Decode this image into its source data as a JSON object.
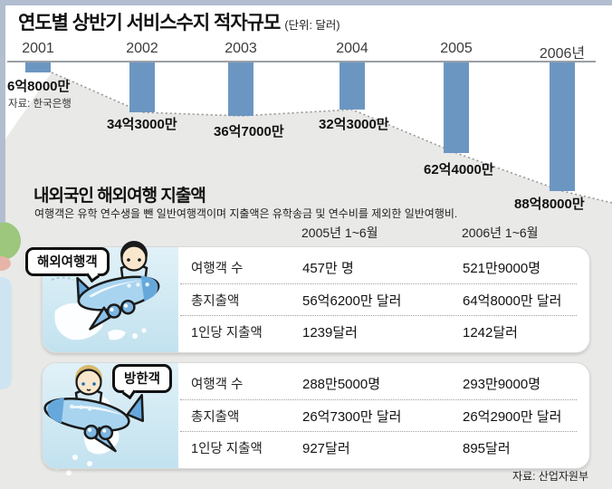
{
  "chart": {
    "title": "연도별 상반기 서비스수지 적자규모",
    "unit": "(단위: 달러)",
    "source": "자료: 한국은행"
  },
  "chart_data": {
    "type": "bar",
    "title": "연도별 상반기 서비스수지 적자규모",
    "unit": "달러",
    "categories": [
      "2001",
      "2002",
      "2003",
      "2004",
      "2005",
      "2006년"
    ],
    "values": [
      680000000,
      3430000000,
      3670000000,
      3230000000,
      6240000000,
      8880000000
    ],
    "value_labels": [
      "6억8000만",
      "34억3000만",
      "36억7000만",
      "32억3000만",
      "62억4000만",
      "88억8000만"
    ],
    "direction": "bars hang downward from baseline (deficit)",
    "trend_line": "dotted line connecting bar ends, gray area shaded below",
    "bar_color": "#6c96c2",
    "source": "자료: 한국은행"
  },
  "table": {
    "title": "내외국인 해외여행 지출액",
    "subtitle": "여행객은 유학 연수생을 뺀 일반여행객이며 지출액은 유학송금 및 연수비를 제외한 일반여행비.",
    "col_headers": [
      "2005년 1~6월",
      "2006년 1~6월"
    ],
    "source": "자료: 산업자원부",
    "blocks": [
      {
        "label": "해외여행객",
        "illustration": "airplane-flying-right-with-black-haired-traveler-over-world-map",
        "rows": [
          {
            "name": "여행객 수",
            "y2005": "457만 명",
            "y2006": "521만9000명"
          },
          {
            "name": "총지출액",
            "y2005": "56억6200만 달러",
            "y2006": "64억8000만 달러"
          },
          {
            "name": "1인당 지출액",
            "y2005": "1239달러",
            "y2006": "1242달러"
          }
        ]
      },
      {
        "label": "방한객",
        "illustration": "airplane-flying-left-with-blond-visitor-over-korea-map",
        "rows": [
          {
            "name": "여행객 수",
            "y2005": "288만5000명",
            "y2006": "293만9000명"
          },
          {
            "name": "총지출액",
            "y2005": "26억7300만 달러",
            "y2006": "26억2900만 달러"
          },
          {
            "name": "1인당 지출액",
            "y2005": "927달러",
            "y2006": "895달러"
          }
        ]
      }
    ]
  },
  "colors": {
    "bar": "#6c96c2",
    "panel_blue": "#c9e5f2",
    "gray_area": "#e9e9e7",
    "frame_strip": "#b2becf"
  }
}
